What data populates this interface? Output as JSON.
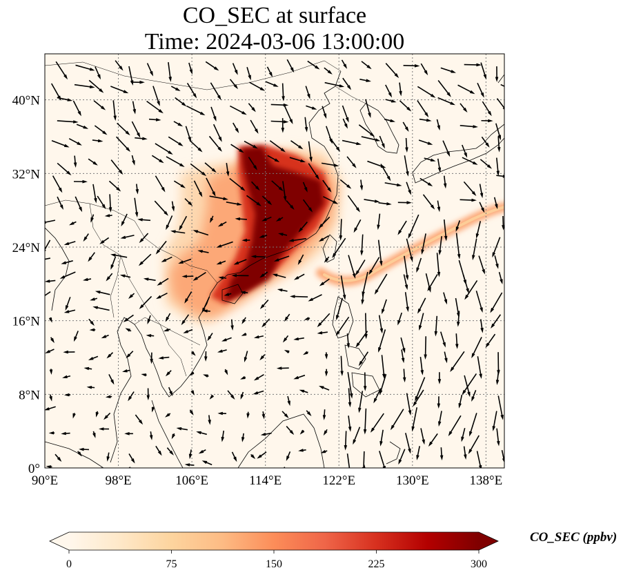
{
  "title": {
    "line1": "CO_SEC at surface",
    "line2": "Time: 2024-03-06 13:00:00"
  },
  "map": {
    "lon_range": [
      90,
      140
    ],
    "lat_range": [
      0,
      45
    ],
    "lon_ticks": [
      "90°E",
      "98°E",
      "106°E",
      "114°E",
      "122°E",
      "130°E",
      "138°E"
    ],
    "lat_ticks": [
      "0°",
      "8°N",
      "16°N",
      "24°N",
      "32°N",
      "40°N"
    ],
    "gridlines": true,
    "field_colormap": "OrRd",
    "vector_field": "wind arrows"
  },
  "colorbar": {
    "label": "CO_SEC (ppbv)",
    "ticks": [
      "0",
      "75",
      "150",
      "225",
      "300"
    ],
    "min": 0,
    "max": 300,
    "extend": "both",
    "colors": [
      "#fff7ec",
      "#fee8c8",
      "#fdd49e",
      "#fdbb84",
      "#fc8d59",
      "#ef6548",
      "#d7301f",
      "#b30000",
      "#7f0000"
    ]
  }
}
